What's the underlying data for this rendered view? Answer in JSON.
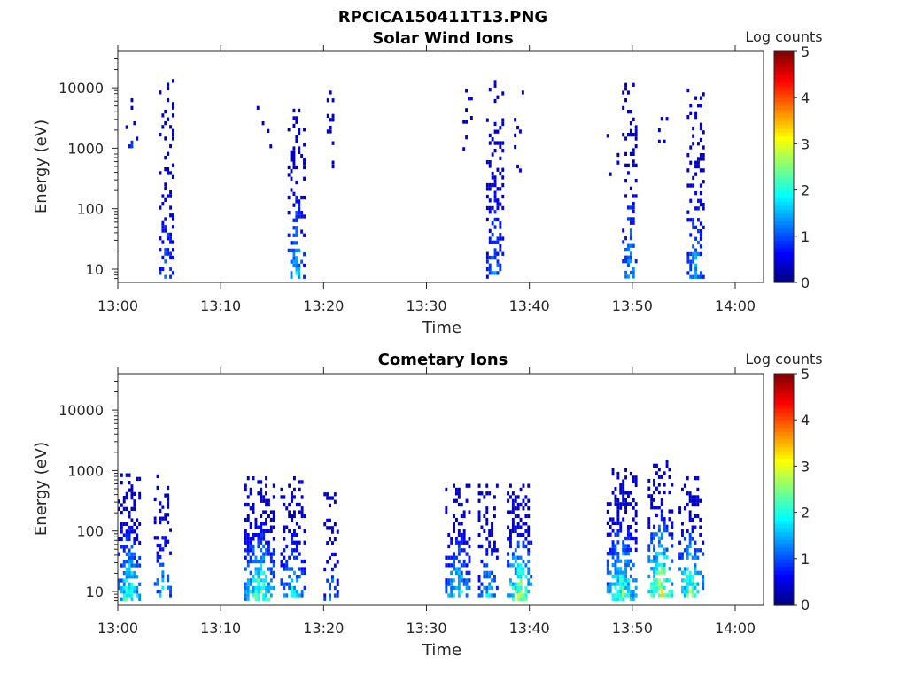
{
  "title": "RPCICA150411T13.PNG",
  "chart_data": [
    {
      "type": "heatmap",
      "title": "Solar Wind Ions",
      "xlabel": "Time",
      "ylabel": "Energy (eV)",
      "xlim": [
        "13:00",
        "14:03"
      ],
      "ylim": [
        6,
        40000
      ],
      "yscale": "log",
      "x_ticks": [
        "13:00",
        "13:10",
        "13:20",
        "13:30",
        "13:40",
        "13:50",
        "14:00"
      ],
      "y_ticks": [
        "10",
        "100",
        "1000",
        "10000"
      ],
      "colorbar": {
        "label": "Log counts",
        "range": [
          0,
          5
        ],
        "ticks": [
          "0",
          "1",
          "2",
          "3",
          "4",
          "5"
        ],
        "colormap": "jet"
      },
      "clusters": [
        {
          "t_min": 0.5,
          "dur": 1.5,
          "e_lo": 1000,
          "e_hi": 9000,
          "max_log": 1.2,
          "density": 0.15
        },
        {
          "t_min": 4.0,
          "dur": 1.6,
          "e_lo": 6,
          "e_hi": 14000,
          "max_log": 1.5,
          "density": 0.3
        },
        {
          "t_min": 13.5,
          "dur": 1.5,
          "e_lo": 1000,
          "e_hi": 9000,
          "max_log": 0.5,
          "density": 0.1
        },
        {
          "t_min": 16.5,
          "dur": 1.8,
          "e_lo": 6,
          "e_hi": 8000,
          "max_log": 2.0,
          "density": 0.3
        },
        {
          "t_min": 20.3,
          "dur": 0.8,
          "e_lo": 400,
          "e_hi": 9000,
          "max_log": 0.8,
          "density": 0.2
        },
        {
          "t_min": 33.5,
          "dur": 1.0,
          "e_lo": 900,
          "e_hi": 13000,
          "max_log": 1.0,
          "density": 0.12
        },
        {
          "t_min": 35.8,
          "dur": 1.8,
          "e_lo": 6,
          "e_hi": 18000,
          "max_log": 1.6,
          "density": 0.3
        },
        {
          "t_min": 38.5,
          "dur": 1.0,
          "e_lo": 400,
          "e_hi": 9000,
          "max_log": 0.8,
          "density": 0.15
        },
        {
          "t_min": 47.5,
          "dur": 1.5,
          "e_lo": 300,
          "e_hi": 2000,
          "max_log": 0.5,
          "density": 0.06
        },
        {
          "t_min": 49.0,
          "dur": 1.6,
          "e_lo": 7,
          "e_hi": 12000,
          "max_log": 1.9,
          "density": 0.3
        },
        {
          "t_min": 52.0,
          "dur": 1.6,
          "e_lo": 900,
          "e_hi": 12000,
          "max_log": 0.8,
          "density": 0.12
        },
        {
          "t_min": 55.3,
          "dur": 1.8,
          "e_lo": 6,
          "e_hi": 13000,
          "max_log": 1.8,
          "density": 0.3
        }
      ]
    },
    {
      "type": "heatmap",
      "title": "Cometary Ions",
      "xlabel": "Time",
      "ylabel": "Energy (eV)",
      "xlim": [
        "13:00",
        "14:03"
      ],
      "ylim": [
        6,
        40000
      ],
      "yscale": "log",
      "x_ticks": [
        "13:00",
        "13:10",
        "13:20",
        "13:30",
        "13:40",
        "13:50",
        "14:00"
      ],
      "y_ticks": [
        "10",
        "100",
        "1000",
        "10000"
      ],
      "colorbar": {
        "label": "Log counts",
        "range": [
          0,
          5
        ],
        "ticks": [
          "0",
          "1",
          "2",
          "3",
          "4",
          "5"
        ],
        "colormap": "jet"
      },
      "clusters": [
        {
          "t_min": 0.0,
          "dur": 2.2,
          "e_lo": 6,
          "e_hi": 900,
          "max_log": 3.0,
          "density": 0.55
        },
        {
          "t_min": 3.5,
          "dur": 1.8,
          "e_lo": 8,
          "e_hi": 1000,
          "max_log": 2.0,
          "density": 0.3
        },
        {
          "t_min": 12.3,
          "dur": 2.9,
          "e_lo": 6,
          "e_hi": 800,
          "max_log": 3.3,
          "density": 0.55
        },
        {
          "t_min": 15.8,
          "dur": 2.6,
          "e_lo": 8,
          "e_hi": 800,
          "max_log": 2.2,
          "density": 0.4
        },
        {
          "t_min": 20.0,
          "dur": 1.5,
          "e_lo": 6,
          "e_hi": 500,
          "max_log": 1.8,
          "density": 0.3
        },
        {
          "t_min": 31.8,
          "dur": 2.4,
          "e_lo": 8,
          "e_hi": 600,
          "max_log": 2.4,
          "density": 0.45
        },
        {
          "t_min": 35.0,
          "dur": 2.0,
          "e_lo": 8,
          "e_hi": 600,
          "max_log": 2.0,
          "density": 0.4
        },
        {
          "t_min": 37.8,
          "dur": 2.6,
          "e_lo": 6,
          "e_hi": 600,
          "max_log": 3.6,
          "density": 0.5
        },
        {
          "t_min": 47.5,
          "dur": 3.0,
          "e_lo": 6,
          "e_hi": 1100,
          "max_log": 3.2,
          "density": 0.5
        },
        {
          "t_min": 51.5,
          "dur": 2.4,
          "e_lo": 8,
          "e_hi": 1500,
          "max_log": 3.8,
          "density": 0.5
        },
        {
          "t_min": 54.5,
          "dur": 2.5,
          "e_lo": 8,
          "e_hi": 800,
          "max_log": 3.2,
          "density": 0.45
        }
      ]
    }
  ]
}
